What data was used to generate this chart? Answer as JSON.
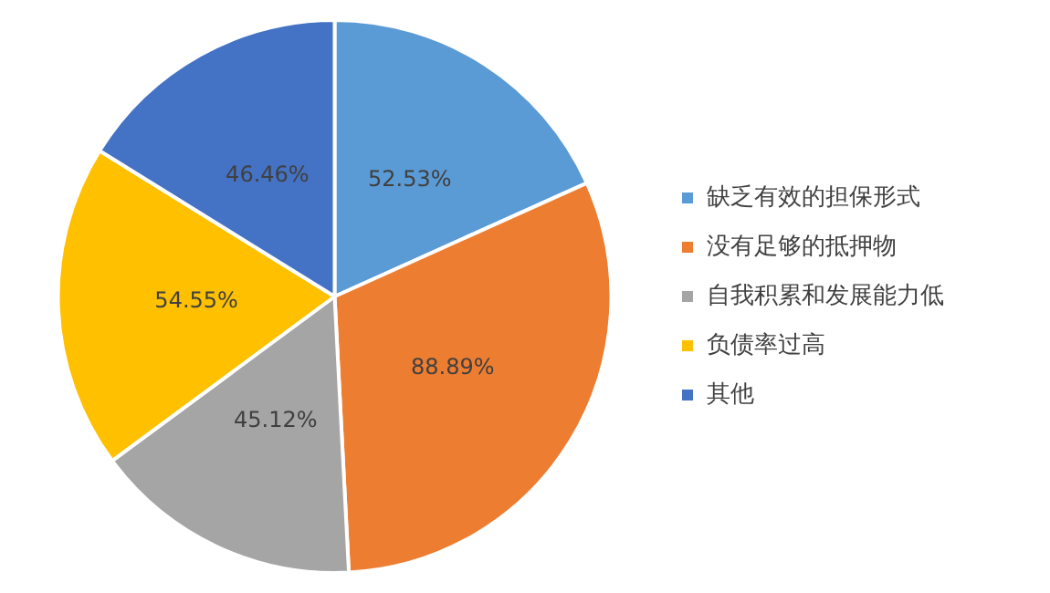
{
  "chart_data": {
    "type": "pie",
    "categories": [
      "缺乏有效的担保形式",
      "没有足够的抵押物",
      "自我积累和发展能力低",
      "负债率过高",
      "其他"
    ],
    "values": [
      52.53,
      88.89,
      45.12,
      54.55,
      46.46
    ],
    "value_labels": [
      "52.53%",
      "88.89%",
      "45.12%",
      "54.55%",
      "46.46%"
    ],
    "colors": [
      "#5b9bd5",
      "#ed7d31",
      "#a5a5a5",
      "#ffc000",
      "#4472c4"
    ],
    "legend": "right"
  }
}
